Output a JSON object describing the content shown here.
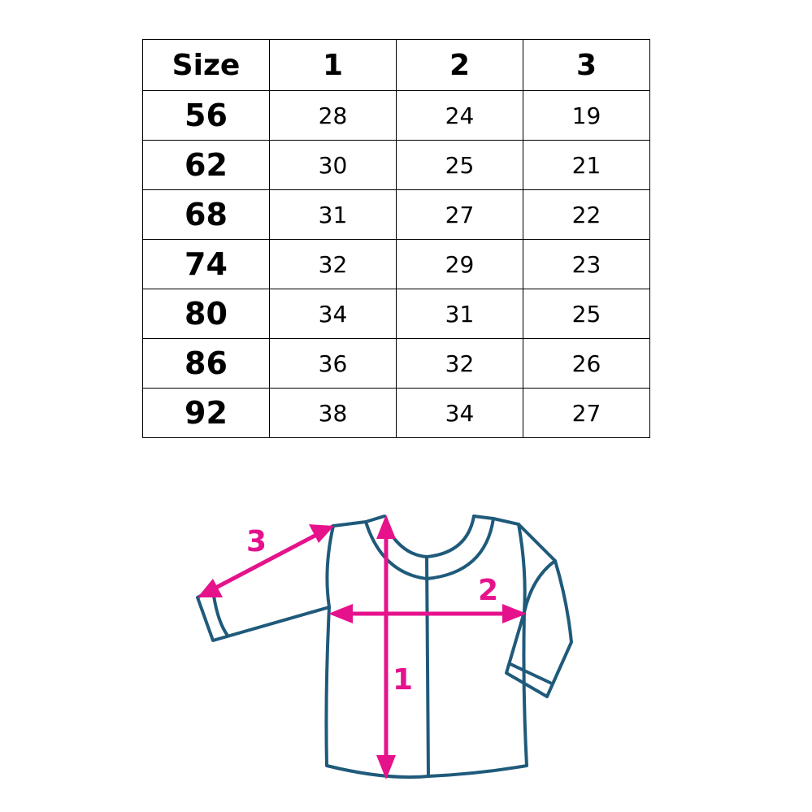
{
  "size_chart": {
    "headers": [
      "Size",
      "1",
      "2",
      "3"
    ],
    "rows": [
      [
        "56",
        "28",
        "24",
        "19"
      ],
      [
        "62",
        "30",
        "25",
        "21"
      ],
      [
        "68",
        "31",
        "27",
        "22"
      ],
      [
        "74",
        "32",
        "29",
        "23"
      ],
      [
        "80",
        "34",
        "31",
        "25"
      ],
      [
        "86",
        "36",
        "32",
        "26"
      ],
      [
        "92",
        "38",
        "34",
        "27"
      ]
    ]
  },
  "diagram": {
    "labels": {
      "length": "1",
      "chest": "2",
      "sleeve": "3"
    },
    "colors": {
      "outline": "#1f5a7a",
      "arrows": "#e5128c"
    }
  }
}
